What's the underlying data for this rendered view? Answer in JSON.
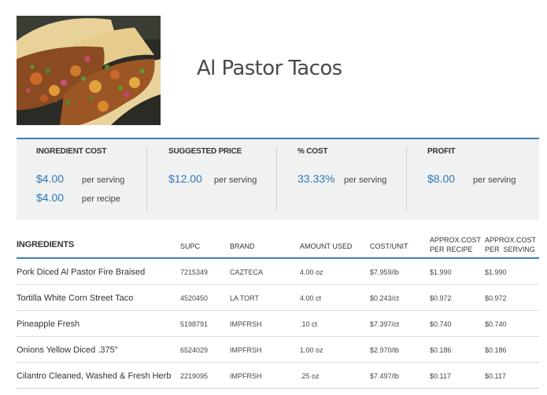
{
  "recipe": {
    "title": "Al Pastor Tacos"
  },
  "summary": {
    "ingredient_cost": {
      "label": "INGREDIENT COST",
      "per_serving_value": "$4.00",
      "per_serving_unit": "per serving",
      "per_recipe_value": "$4.00",
      "per_recipe_unit": "per recipe"
    },
    "suggested_price": {
      "label": "SUGGESTED PRICE",
      "value": "$12.00",
      "unit": "per serving"
    },
    "percent_cost": {
      "label": "% COST",
      "value": "33.33%",
      "unit": "per serving"
    },
    "profit": {
      "label": "PROFIT",
      "value": "$8.00",
      "unit": "per serving"
    }
  },
  "table": {
    "headers": {
      "ingredients": "INGREDIENTS",
      "supc": "SUPC",
      "brand": "BRAND",
      "amount_used": "AMOUNT USED",
      "cost_unit": "COST/UNIT",
      "approx_cost_recipe_1": "APPROX.COST",
      "approx_cost_recipe_2": "PER RECIPE",
      "approx_cost_serving_1": "APPROX.COST",
      "approx_cost_serving_2": "PER  SERVING"
    },
    "rows": [
      {
        "name": "Pork Diced Al Pastor Fire Braised",
        "supc": "7215349",
        "brand": "CAZTECA",
        "amount": "4.00 oz",
        "cost_unit": "$7.959/lb",
        "per_recipe": "$1.990",
        "per_serving": "$1.990"
      },
      {
        "name": "Tortilla White Corn Street Taco",
        "supc": "4520450",
        "brand": "LA TORT",
        "amount": "4.00 ct",
        "cost_unit": "$0.243/ct",
        "per_recipe": "$0.972",
        "per_serving": "$0.972"
      },
      {
        "name": "Pineapple Fresh",
        "supc": "5198791",
        "brand": "IMPFRSH",
        "amount": ".10 ct",
        "cost_unit": "$7.397/ct",
        "per_recipe": "$0.740",
        "per_serving": "$0.740"
      },
      {
        "name": "Onions Yellow Diced .375\"",
        "supc": "6524029",
        "brand": "IMPFRSH",
        "amount": "1.00 oz",
        "cost_unit": "$2.970/lb",
        "per_recipe": "$0.186",
        "per_serving": "$0.186"
      },
      {
        "name": "Cilantro Cleaned, Washed & Fresh Herb",
        "supc": "2219095",
        "brand": "IMPFRSH",
        "amount": ".25 oz",
        "cost_unit": "$7.497/lb",
        "per_recipe": "$0.117",
        "per_serving": "$0.117"
      }
    ]
  },
  "colors": {
    "accent": "#2f79b5",
    "rule": "#3d7fb5",
    "panel": "#f0f1f1"
  }
}
